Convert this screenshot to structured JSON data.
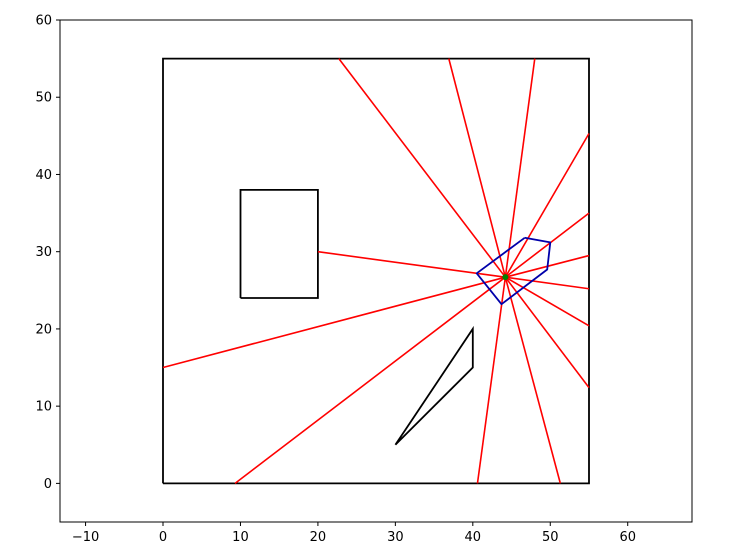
{
  "chart_data": {
    "type": "line",
    "title": "",
    "xlabel": "",
    "ylabel": "",
    "xlim": [
      -13.3,
      68.3
    ],
    "ylim": [
      -5,
      60
    ],
    "grid": false,
    "x_ticks": [
      -10,
      0,
      10,
      20,
      30,
      40,
      50,
      60
    ],
    "y_ticks": [
      0,
      10,
      20,
      30,
      40,
      50,
      60
    ],
    "colors": {
      "boundary": "#000000",
      "obstacle": "#000000",
      "ray": "#ff0000",
      "polygon": "#0000aa",
      "center": "#008000"
    },
    "boundary": [
      [
        0,
        0
      ],
      [
        55,
        0
      ],
      [
        55,
        55
      ],
      [
        0,
        55
      ],
      [
        0,
        0
      ]
    ],
    "obstacles": [
      [
        [
          10,
          24
        ],
        [
          20,
          24
        ],
        [
          20,
          38
        ],
        [
          10,
          38
        ],
        [
          10,
          24
        ]
      ],
      [
        [
          30,
          5
        ],
        [
          40,
          20
        ],
        [
          40,
          15
        ],
        [
          30,
          5
        ]
      ]
    ],
    "center": [
      44.2,
      26.7
    ],
    "ray_endpoints": [
      [
        22.7,
        55
      ],
      [
        36.9,
        55
      ],
      [
        48.0,
        55
      ],
      [
        55,
        45.3
      ],
      [
        55,
        35.0
      ],
      [
        55,
        29.5
      ],
      [
        55,
        25.2
      ],
      [
        55,
        20.4
      ],
      [
        55,
        12.4
      ],
      [
        51.3,
        0
      ],
      [
        40.6,
        0
      ],
      [
        9.3,
        0
      ],
      [
        0,
        15.0
      ],
      [
        20,
        30.0
      ]
    ],
    "polygon": [
      [
        46.7,
        31.8
      ],
      [
        50.0,
        31.2
      ],
      [
        49.6,
        27.7
      ],
      [
        43.7,
        23.2
      ],
      [
        40.5,
        27.2
      ],
      [
        46.7,
        31.8
      ]
    ]
  }
}
